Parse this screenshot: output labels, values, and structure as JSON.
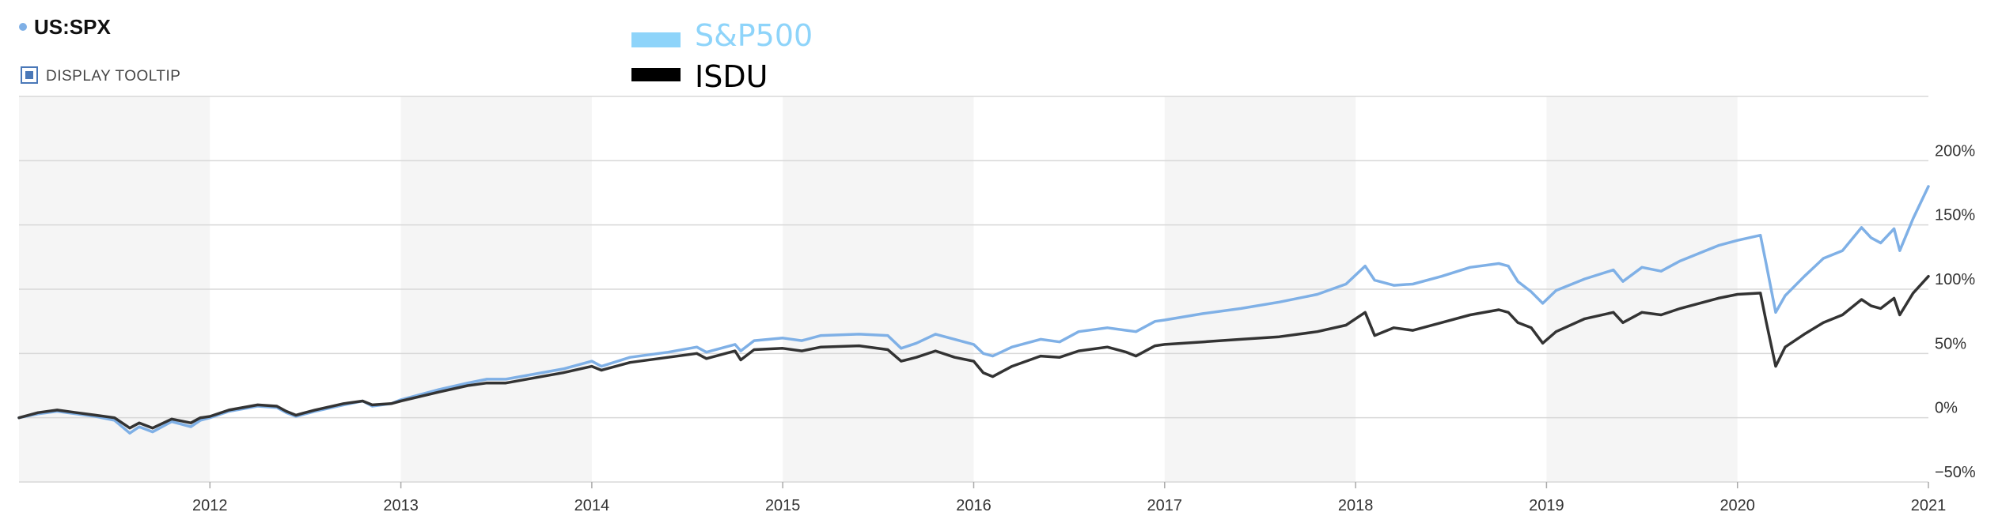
{
  "header": {
    "symbol": "US:SPX",
    "tooltip_toggle_label": "DISPLAY TOOLTIP",
    "tooltip_checked": true
  },
  "colors": {
    "sp500": "#7FB0E6",
    "sp500_legend": "#8ED4FA",
    "isdu": "#333333",
    "isdu_legend": "#000000",
    "band": "#F5F5F5",
    "grid": "#D8D8D8",
    "dot": "#7FB0E6"
  },
  "chart_data": {
    "type": "line",
    "title": "",
    "xlabel": "",
    "ylabel": "",
    "y_unit": "%",
    "xlim": [
      2011.0,
      2021.0
    ],
    "ylim": [
      -50,
      250
    ],
    "x_ticks": [
      "2012",
      "2013",
      "2014",
      "2015",
      "2016",
      "2017",
      "2018",
      "2019",
      "2020",
      "2021"
    ],
    "y_ticks": [
      "200%",
      "150%",
      "100%",
      "50%",
      "0%",
      "−50%"
    ],
    "y_tick_values": [
      200,
      150,
      100,
      50,
      0,
      -50
    ],
    "grid": true,
    "alternating_year_bands": true,
    "legend_placement": "top-center",
    "series": [
      {
        "name": "S&P500",
        "color_key": "sp500",
        "points": [
          [
            2011.0,
            0
          ],
          [
            2011.1,
            3
          ],
          [
            2011.2,
            5
          ],
          [
            2011.3,
            3
          ],
          [
            2011.4,
            1
          ],
          [
            2011.5,
            -2
          ],
          [
            2011.58,
            -12
          ],
          [
            2011.63,
            -7
          ],
          [
            2011.7,
            -11
          ],
          [
            2011.8,
            -3
          ],
          [
            2011.9,
            -7
          ],
          [
            2011.95,
            -2
          ],
          [
            2012.0,
            0
          ],
          [
            2012.1,
            5
          ],
          [
            2012.25,
            9
          ],
          [
            2012.35,
            8
          ],
          [
            2012.4,
            4
          ],
          [
            2012.45,
            1
          ],
          [
            2012.55,
            5
          ],
          [
            2012.7,
            10
          ],
          [
            2012.8,
            13
          ],
          [
            2012.85,
            9
          ],
          [
            2012.95,
            11
          ],
          [
            2013.0,
            14
          ],
          [
            2013.2,
            22
          ],
          [
            2013.35,
            27
          ],
          [
            2013.45,
            30
          ],
          [
            2013.55,
            30
          ],
          [
            2013.7,
            34
          ],
          [
            2013.85,
            38
          ],
          [
            2014.0,
            44
          ],
          [
            2014.05,
            40
          ],
          [
            2014.2,
            47
          ],
          [
            2014.4,
            51
          ],
          [
            2014.55,
            55
          ],
          [
            2014.6,
            51
          ],
          [
            2014.75,
            57
          ],
          [
            2014.78,
            52
          ],
          [
            2014.85,
            60
          ],
          [
            2015.0,
            62
          ],
          [
            2015.1,
            60
          ],
          [
            2015.2,
            64
          ],
          [
            2015.4,
            65
          ],
          [
            2015.55,
            64
          ],
          [
            2015.62,
            54
          ],
          [
            2015.7,
            58
          ],
          [
            2015.8,
            65
          ],
          [
            2015.9,
            61
          ],
          [
            2016.0,
            57
          ],
          [
            2016.05,
            50
          ],
          [
            2016.1,
            48
          ],
          [
            2016.2,
            55
          ],
          [
            2016.35,
            61
          ],
          [
            2016.45,
            59
          ],
          [
            2016.55,
            67
          ],
          [
            2016.7,
            70
          ],
          [
            2016.8,
            68
          ],
          [
            2016.85,
            67
          ],
          [
            2016.95,
            75
          ],
          [
            2017.0,
            76
          ],
          [
            2017.2,
            81
          ],
          [
            2017.4,
            85
          ],
          [
            2017.6,
            90
          ],
          [
            2017.8,
            96
          ],
          [
            2017.95,
            104
          ],
          [
            2018.05,
            118
          ],
          [
            2018.1,
            107
          ],
          [
            2018.2,
            103
          ],
          [
            2018.3,
            104
          ],
          [
            2018.45,
            110
          ],
          [
            2018.6,
            117
          ],
          [
            2018.75,
            120
          ],
          [
            2018.8,
            118
          ],
          [
            2018.85,
            106
          ],
          [
            2018.92,
            98
          ],
          [
            2018.98,
            89
          ],
          [
            2019.05,
            99
          ],
          [
            2019.2,
            108
          ],
          [
            2019.35,
            115
          ],
          [
            2019.4,
            106
          ],
          [
            2019.5,
            117
          ],
          [
            2019.6,
            114
          ],
          [
            2019.7,
            122
          ],
          [
            2019.8,
            128
          ],
          [
            2019.9,
            134
          ],
          [
            2020.0,
            138
          ],
          [
            2020.12,
            142
          ],
          [
            2020.15,
            120
          ],
          [
            2020.2,
            82
          ],
          [
            2020.25,
            95
          ],
          [
            2020.35,
            110
          ],
          [
            2020.45,
            124
          ],
          [
            2020.55,
            130
          ],
          [
            2020.65,
            148
          ],
          [
            2020.7,
            140
          ],
          [
            2020.75,
            136
          ],
          [
            2020.82,
            147
          ],
          [
            2020.85,
            130
          ],
          [
            2020.92,
            155
          ],
          [
            2021.0,
            180
          ]
        ]
      },
      {
        "name": "ISDU",
        "color_key": "isdu",
        "points": [
          [
            2011.0,
            0
          ],
          [
            2011.1,
            4
          ],
          [
            2011.2,
            6
          ],
          [
            2011.3,
            4
          ],
          [
            2011.4,
            2
          ],
          [
            2011.5,
            0
          ],
          [
            2011.58,
            -8
          ],
          [
            2011.63,
            -4
          ],
          [
            2011.7,
            -8
          ],
          [
            2011.8,
            -1
          ],
          [
            2011.9,
            -4
          ],
          [
            2011.95,
            0
          ],
          [
            2012.0,
            1
          ],
          [
            2012.1,
            6
          ],
          [
            2012.25,
            10
          ],
          [
            2012.35,
            9
          ],
          [
            2012.4,
            5
          ],
          [
            2012.45,
            2
          ],
          [
            2012.55,
            6
          ],
          [
            2012.7,
            11
          ],
          [
            2012.8,
            13
          ],
          [
            2012.85,
            10
          ],
          [
            2012.95,
            11
          ],
          [
            2013.0,
            13
          ],
          [
            2013.2,
            20
          ],
          [
            2013.35,
            25
          ],
          [
            2013.45,
            27
          ],
          [
            2013.55,
            27
          ],
          [
            2013.7,
            31
          ],
          [
            2013.85,
            35
          ],
          [
            2014.0,
            40
          ],
          [
            2014.05,
            37
          ],
          [
            2014.2,
            43
          ],
          [
            2014.4,
            47
          ],
          [
            2014.55,
            50
          ],
          [
            2014.6,
            46
          ],
          [
            2014.75,
            52
          ],
          [
            2014.78,
            45
          ],
          [
            2014.85,
            53
          ],
          [
            2015.0,
            54
          ],
          [
            2015.1,
            52
          ],
          [
            2015.2,
            55
          ],
          [
            2015.4,
            56
          ],
          [
            2015.55,
            53
          ],
          [
            2015.62,
            44
          ],
          [
            2015.7,
            47
          ],
          [
            2015.8,
            52
          ],
          [
            2015.9,
            47
          ],
          [
            2016.0,
            44
          ],
          [
            2016.05,
            35
          ],
          [
            2016.1,
            32
          ],
          [
            2016.2,
            40
          ],
          [
            2016.35,
            48
          ],
          [
            2016.45,
            47
          ],
          [
            2016.55,
            52
          ],
          [
            2016.7,
            55
          ],
          [
            2016.8,
            51
          ],
          [
            2016.85,
            48
          ],
          [
            2016.95,
            56
          ],
          [
            2017.0,
            57
          ],
          [
            2017.2,
            59
          ],
          [
            2017.4,
            61
          ],
          [
            2017.6,
            63
          ],
          [
            2017.8,
            67
          ],
          [
            2017.95,
            72
          ],
          [
            2018.05,
            82
          ],
          [
            2018.1,
            64
          ],
          [
            2018.2,
            70
          ],
          [
            2018.3,
            68
          ],
          [
            2018.45,
            74
          ],
          [
            2018.6,
            80
          ],
          [
            2018.75,
            84
          ],
          [
            2018.8,
            82
          ],
          [
            2018.85,
            74
          ],
          [
            2018.92,
            70
          ],
          [
            2018.98,
            58
          ],
          [
            2019.05,
            67
          ],
          [
            2019.2,
            77
          ],
          [
            2019.35,
            82
          ],
          [
            2019.4,
            74
          ],
          [
            2019.5,
            82
          ],
          [
            2019.6,
            80
          ],
          [
            2019.7,
            85
          ],
          [
            2019.8,
            89
          ],
          [
            2019.9,
            93
          ],
          [
            2020.0,
            96
          ],
          [
            2020.12,
            97
          ],
          [
            2020.15,
            75
          ],
          [
            2020.2,
            40
          ],
          [
            2020.25,
            55
          ],
          [
            2020.35,
            65
          ],
          [
            2020.45,
            74
          ],
          [
            2020.55,
            80
          ],
          [
            2020.65,
            92
          ],
          [
            2020.7,
            87
          ],
          [
            2020.75,
            85
          ],
          [
            2020.82,
            93
          ],
          [
            2020.85,
            80
          ],
          [
            2020.92,
            97
          ],
          [
            2021.0,
            110
          ]
        ]
      }
    ]
  }
}
